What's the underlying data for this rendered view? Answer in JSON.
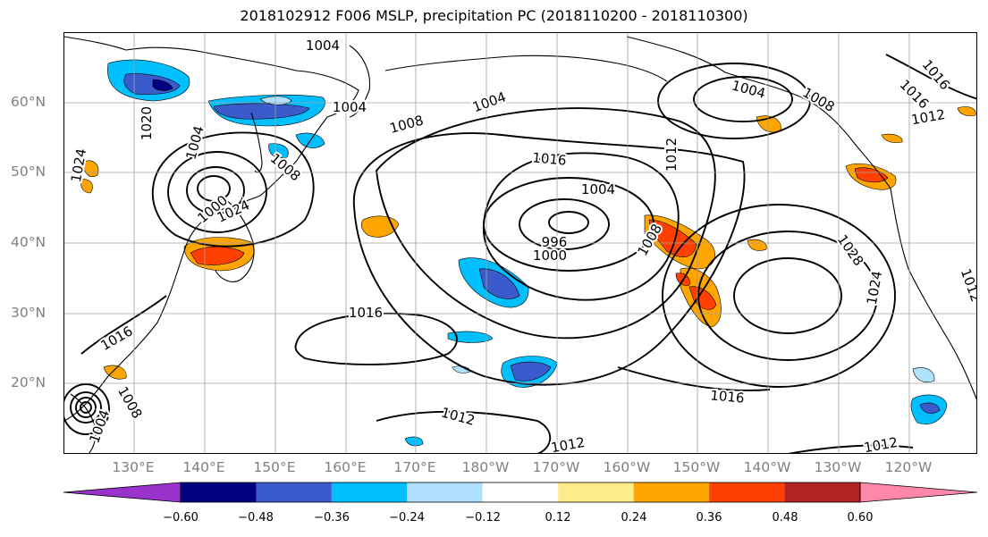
{
  "title": "2018102912 F006 MSLP, precipitation PC (2018110200 - 2018110300)",
  "latitude_labels": [
    "60°N",
    "50°N",
    "40°N",
    "30°N",
    "20°N"
  ],
  "longitude_labels": [
    "130°E",
    "140°E",
    "150°E",
    "160°E",
    "170°E",
    "180°W",
    "170°W",
    "160°W",
    "150°W",
    "140°W",
    "130°W",
    "120°W"
  ],
  "isobar_labels": [
    "1004",
    "1004",
    "1004",
    "1004",
    "1008",
    "1008",
    "1008",
    "1008",
    "1008",
    "1012",
    "1012",
    "1012",
    "1012",
    "1012",
    "1012",
    "1016",
    "1016",
    "1016",
    "1016",
    "1016",
    "1020",
    "1024",
    "1024",
    "1024",
    "1028",
    "1000",
    "1000",
    "996",
    "1004",
    "1004",
    "1004",
    "1016"
  ],
  "colorbar": {
    "ticks": [
      "−0.60",
      "−0.48",
      "−0.36",
      "−0.24",
      "−0.12",
      "0.12",
      "0.24",
      "0.36",
      "0.48",
      "0.60"
    ],
    "bins": [
      {
        "color": "#9a33cc"
      },
      {
        "color": "#000080"
      },
      {
        "color": "#3b5bcc"
      },
      {
        "color": "#00bfff"
      },
      {
        "color": "#b0e2ff"
      },
      {
        "color": "#ffffff"
      },
      {
        "color": "#ffec8b"
      },
      {
        "color": "#ffa500"
      },
      {
        "color": "#ff4000"
      },
      {
        "color": "#b22222"
      },
      {
        "color": "#ff88aa"
      }
    ]
  },
  "map_colors": {
    "isobar": "#000000",
    "coast": "#000000",
    "grid": "#a0a0a0"
  }
}
